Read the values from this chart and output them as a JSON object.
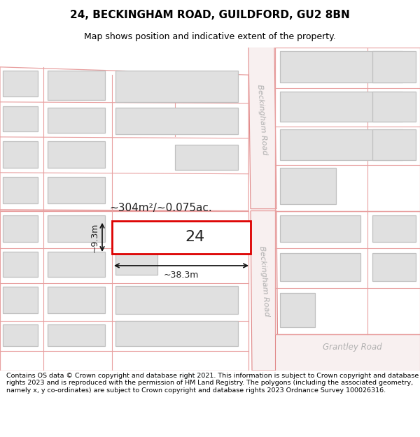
{
  "title": "24, BECKINGHAM ROAD, GUILDFORD, GU2 8BN",
  "subtitle": "Map shows position and indicative extent of the property.",
  "footer": "Contains OS data © Crown copyright and database right 2021. This information is subject to Crown copyright and database rights 2023 and is reproduced with the permission of HM Land Registry. The polygons (including the associated geometry, namely x, y co-ordinates) are subject to Crown copyright and database rights 2023 Ordnance Survey 100026316.",
  "bg": "#ffffff",
  "map_bg": "#f8f8f8",
  "parcel_line": "#e8a0a0",
  "bld_fill": "#e0e0e0",
  "bld_edge": "#c0c0c0",
  "road_fill": "#f8f0f0",
  "road_edge": "#e08888",
  "hi_fill": "#ffffff",
  "hi_edge": "#dd0000",
  "dim_col": "#111111",
  "txt_col": "#222222",
  "road_lbl": "#b0b0b0",
  "property_label": "24",
  "area_label": "~304m²/~0.075ac.",
  "width_label": "~38.3m",
  "height_label": "~9.3m"
}
